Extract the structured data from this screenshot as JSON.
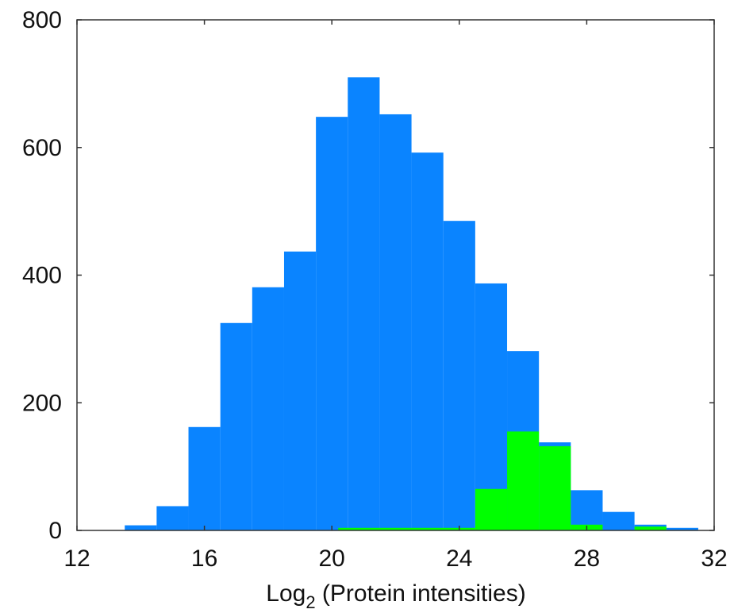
{
  "chart_data": {
    "type": "bar",
    "title": "",
    "xlabel": {
      "base": "Log",
      "subscript": "2",
      "rest": " (Protein intensities)"
    },
    "ylabel": "",
    "xlim": [
      12,
      32
    ],
    "ylim": [
      0,
      800
    ],
    "xticks": [
      "12",
      "16",
      "20",
      "24",
      "28",
      "32"
    ],
    "yticks": [
      "0",
      "200",
      "400",
      "600",
      "800"
    ],
    "grid": false,
    "colors": {
      "blue": "#0A84FF",
      "green": "#00FF00"
    },
    "series": [
      {
        "color": "#0A84FF",
        "bins": [
          {
            "x0": 13.5,
            "x1": 14.5,
            "value": 8
          },
          {
            "x0": 14.5,
            "x1": 15.5,
            "value": 38
          },
          {
            "x0": 15.5,
            "x1": 16.5,
            "value": 162
          },
          {
            "x0": 16.5,
            "x1": 17.5,
            "value": 325
          },
          {
            "x0": 17.5,
            "x1": 18.5,
            "value": 381
          },
          {
            "x0": 18.5,
            "x1": 19.5,
            "value": 437
          },
          {
            "x0": 19.5,
            "x1": 20.5,
            "value": 648
          },
          {
            "x0": 20.5,
            "x1": 21.5,
            "value": 710
          },
          {
            "x0": 21.5,
            "x1": 22.5,
            "value": 652
          },
          {
            "x0": 22.5,
            "x1": 23.5,
            "value": 592
          },
          {
            "x0": 23.5,
            "x1": 24.5,
            "value": 485
          },
          {
            "x0": 24.5,
            "x1": 25.5,
            "value": 387
          },
          {
            "x0": 25.5,
            "x1": 26.5,
            "value": 281
          },
          {
            "x0": 26.5,
            "x1": 27.5,
            "value": 138
          },
          {
            "x0": 27.5,
            "x1": 28.5,
            "value": 63
          },
          {
            "x0": 28.5,
            "x1": 29.5,
            "value": 29
          },
          {
            "x0": 29.5,
            "x1": 30.5,
            "value": 9
          },
          {
            "x0": 30.5,
            "x1": 31.5,
            "value": 4
          }
        ]
      },
      {
        "color": "#00FF00",
        "bins": [
          {
            "x0": 20.2,
            "x1": 24.5,
            "value": 4
          },
          {
            "x0": 24.5,
            "x1": 25.5,
            "value": 65
          },
          {
            "x0": 25.5,
            "x1": 26.5,
            "value": 155
          },
          {
            "x0": 26.5,
            "x1": 27.5,
            "value": 132
          },
          {
            "x0": 27.5,
            "x1": 28.5,
            "value": 9
          },
          {
            "x0": 29.5,
            "x1": 30.5,
            "value": 6
          }
        ]
      }
    ]
  }
}
